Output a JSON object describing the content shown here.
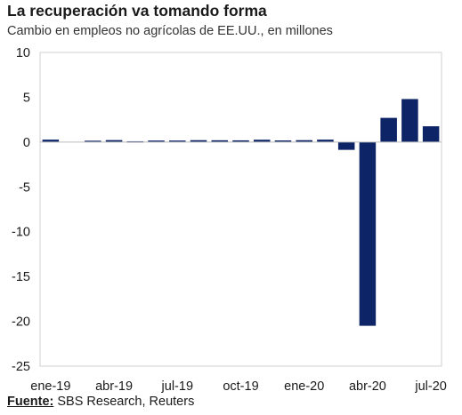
{
  "title": "La recuperación va tomando forma",
  "subtitle": "Cambio en empleos no agrícolas de EE.UU., en millones",
  "source": {
    "label": "Fuente:",
    "text": "SBS Research, Reuters"
  },
  "chart_data": {
    "type": "bar",
    "title": "La recuperación va tomando forma",
    "ylabel": "",
    "xlabel": "",
    "ylim": [
      -25,
      10
    ],
    "yticks": [
      10,
      5,
      0,
      -5,
      -10,
      -15,
      -20,
      -25
    ],
    "grid": false,
    "bar_color": "#0d2466",
    "categories": [
      "ene-19",
      "feb-19",
      "mar-19",
      "abr-19",
      "may-19",
      "jun-19",
      "jul-19",
      "ago-19",
      "sep-19",
      "oct-19",
      "nov-19",
      "dic-19",
      "ene-20",
      "feb-20",
      "mar-20",
      "abr-20",
      "may-20",
      "jun-20",
      "jul-20"
    ],
    "xtick_labels": [
      "ene-19",
      "abr-19",
      "jul-19",
      "oct-19",
      "ene-20",
      "abr-20",
      "jul-20"
    ],
    "values": [
      0.27,
      0.0,
      0.15,
      0.22,
      0.09,
      0.17,
      0.17,
      0.21,
      0.2,
      0.19,
      0.26,
      0.18,
      0.21,
      0.27,
      -0.87,
      -20.5,
      2.7,
      4.8,
      1.76
    ]
  }
}
